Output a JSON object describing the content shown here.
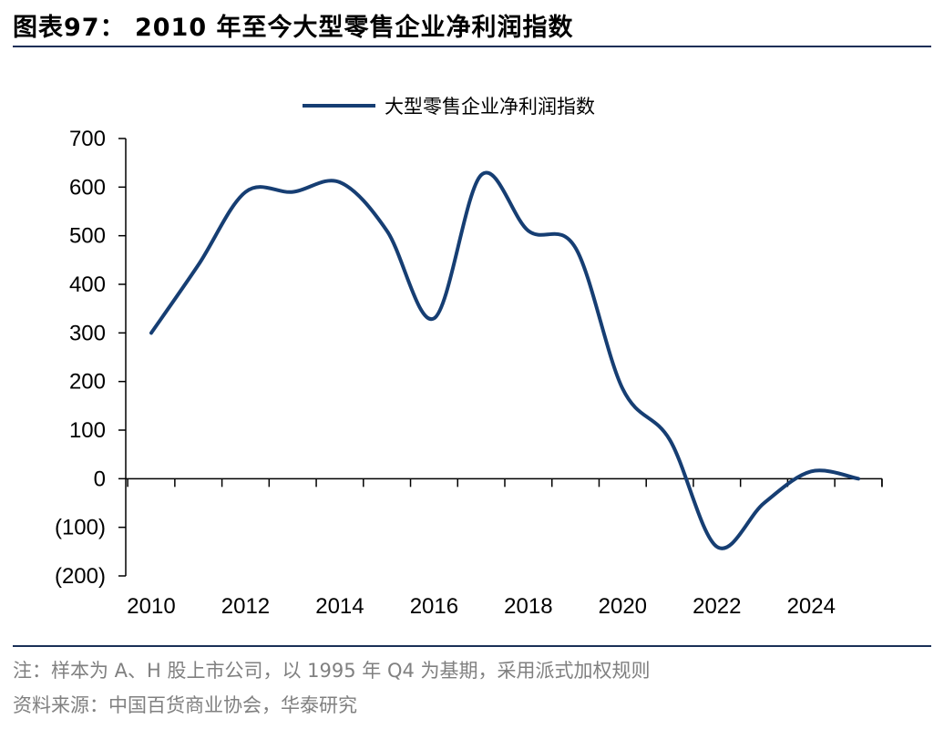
{
  "figure": {
    "title": "图表97： 2010 年至今大型零售企业净利润指数",
    "note": "注：样本为 A、H 股上市公司，以 1995 年 Q4 为基期，采用派式加权规则",
    "source": "资料来源：中国百货商业协会，华泰研究"
  },
  "colors": {
    "series": "#163e73",
    "axis": "#000000",
    "rule": "#1a2f57",
    "note_text": "#808080"
  },
  "chart_data": {
    "type": "line",
    "title": "",
    "xlabel": "",
    "ylabel": "",
    "legend_position": "top-center",
    "grid": false,
    "xlim": [
      2010,
      2025
    ],
    "ylim": [
      -200,
      700
    ],
    "x_ticks": [
      2010,
      2012,
      2014,
      2016,
      2018,
      2020,
      2022,
      2024
    ],
    "x_tick_labels": [
      "2010",
      "2012",
      "2014",
      "2016",
      "2018",
      "2020",
      "2022",
      "2024"
    ],
    "y_ticks": [
      -200,
      -100,
      0,
      100,
      200,
      300,
      400,
      500,
      600,
      700
    ],
    "y_tick_labels": [
      "(200)",
      "(100)",
      "0",
      "100",
      "200",
      "300",
      "400",
      "500",
      "600",
      "700"
    ],
    "series": [
      {
        "name": "大型零售企业净利润指数",
        "x": [
          2010,
          2011,
          2012,
          2013,
          2014,
          2015,
          2016,
          2017,
          2018,
          2019,
          2020,
          2021,
          2022,
          2023,
          2024,
          2025
        ],
        "values": [
          300,
          440,
          590,
          590,
          610,
          510,
          330,
          625,
          510,
          475,
          185,
          80,
          -140,
          -50,
          15,
          0
        ]
      }
    ]
  }
}
